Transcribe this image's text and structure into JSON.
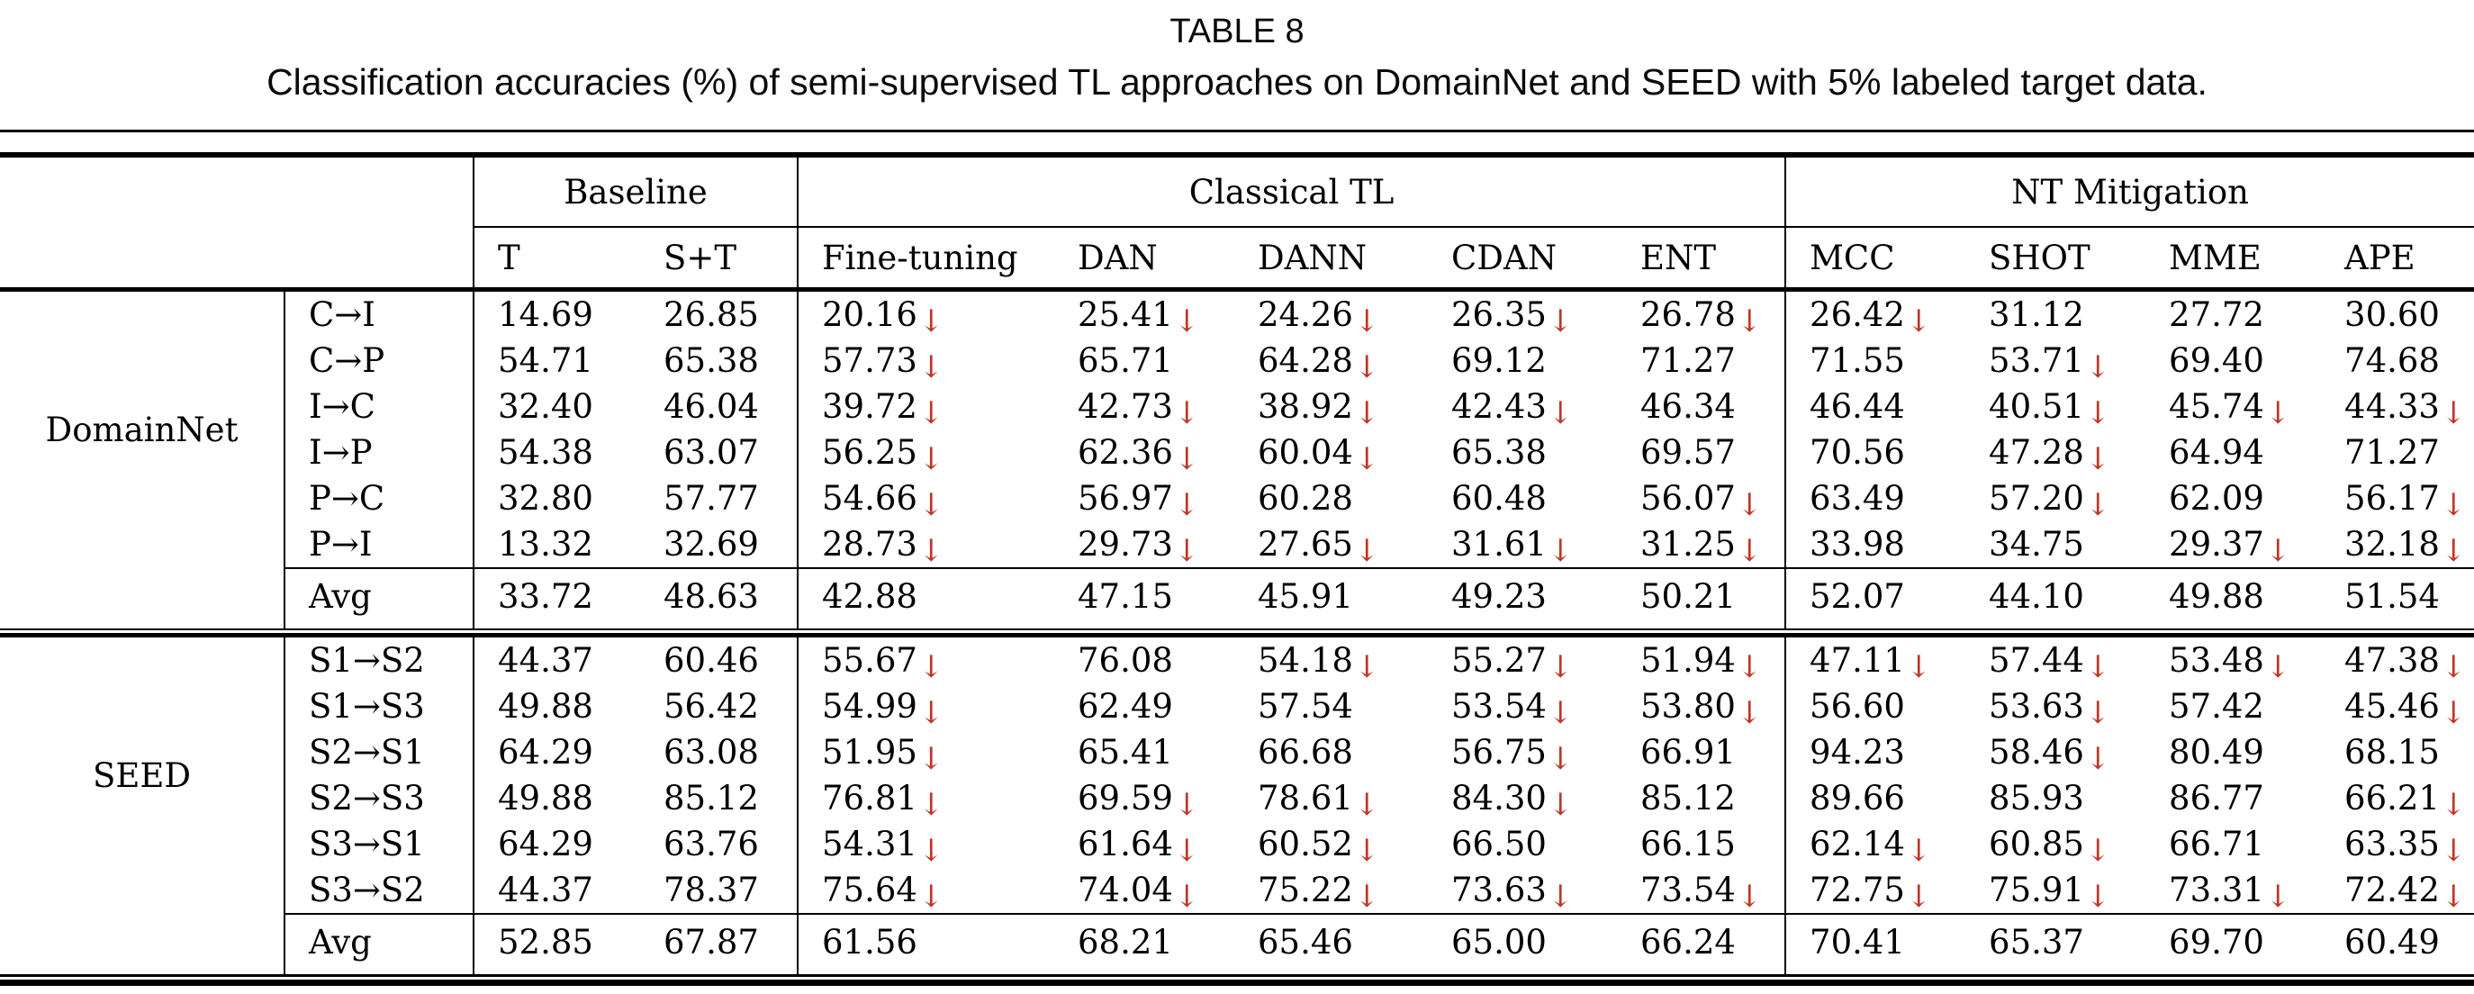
{
  "caption": {
    "title": "TABLE 8",
    "subtitle": "Classification accuracies (%) of semi-supervised TL approaches on DomainNet and SEED with 5% labeled target data."
  },
  "colors": {
    "drop_arrow": "#bf3627",
    "rule": "#000000"
  },
  "drop_arrow_glyph": "↓",
  "columns": {
    "groups": [
      {
        "label": "Baseline",
        "span": 2
      },
      {
        "label": "Classical TL",
        "span": 5
      },
      {
        "label": "NT Mitigation",
        "span": 4
      }
    ],
    "methods": [
      "T",
      "S+T",
      "Fine-tuning",
      "DAN",
      "DANN",
      "CDAN",
      "ENT",
      "MCC",
      "SHOT",
      "MME",
      "APE"
    ]
  },
  "sections": [
    {
      "dataset": "DomainNet",
      "rows": [
        {
          "pair": "C→I",
          "values": [
            "14.69",
            "26.85",
            "20.16↓",
            "25.41↓",
            "24.26↓",
            "26.35↓",
            "26.78↓",
            "26.42↓",
            "31.12",
            "27.72",
            "30.60"
          ]
        },
        {
          "pair": "C→P",
          "values": [
            "54.71",
            "65.38",
            "57.73↓",
            "65.71",
            "64.28↓",
            "69.12",
            "71.27",
            "71.55",
            "53.71↓",
            "69.40",
            "74.68"
          ]
        },
        {
          "pair": "I→C",
          "values": [
            "32.40",
            "46.04",
            "39.72↓",
            "42.73↓",
            "38.92↓",
            "42.43↓",
            "46.34",
            "46.44",
            "40.51↓",
            "45.74↓",
            "44.33↓"
          ]
        },
        {
          "pair": "I→P",
          "values": [
            "54.38",
            "63.07",
            "56.25↓",
            "62.36↓",
            "60.04↓",
            "65.38",
            "69.57",
            "70.56",
            "47.28↓",
            "64.94",
            "71.27"
          ]
        },
        {
          "pair": "P→C",
          "values": [
            "32.80",
            "57.77",
            "54.66↓",
            "56.97↓",
            "60.28",
            "60.48",
            "56.07↓",
            "63.49",
            "57.20↓",
            "62.09",
            "56.17↓"
          ]
        },
        {
          "pair": "P→I",
          "values": [
            "13.32",
            "32.69",
            "28.73↓",
            "29.73↓",
            "27.65↓",
            "31.61↓",
            "31.25↓",
            "33.98",
            "34.75",
            "29.37↓",
            "32.18↓"
          ]
        }
      ],
      "avg_label": "Avg",
      "avg_values": [
        "33.72",
        "48.63",
        "42.88",
        "47.15",
        "45.91",
        "49.23",
        "50.21",
        "52.07",
        "44.10",
        "49.88",
        "51.54"
      ]
    },
    {
      "dataset": "SEED",
      "rows": [
        {
          "pair": "S1→S2",
          "values": [
            "44.37",
            "60.46",
            "55.67↓",
            "76.08",
            "54.18↓",
            "55.27↓",
            "51.94↓",
            "47.11↓",
            "57.44↓",
            "53.48↓",
            "47.38↓"
          ]
        },
        {
          "pair": "S1→S3",
          "values": [
            "49.88",
            "56.42",
            "54.99↓",
            "62.49",
            "57.54",
            "53.54↓",
            "53.80↓",
            "56.60",
            "53.63↓",
            "57.42",
            "45.46↓"
          ]
        },
        {
          "pair": "S2→S1",
          "values": [
            "64.29",
            "63.08",
            "51.95↓",
            "65.41",
            "66.68",
            "56.75↓",
            "66.91",
            "94.23",
            "58.46↓",
            "80.49",
            "68.15"
          ]
        },
        {
          "pair": "S2→S3",
          "values": [
            "49.88",
            "85.12",
            "76.81↓",
            "69.59↓",
            "78.61↓",
            "84.30↓",
            "85.12",
            "89.66",
            "85.93",
            "86.77",
            "66.21↓"
          ]
        },
        {
          "pair": "S3→S1",
          "values": [
            "64.29",
            "63.76",
            "54.31↓",
            "61.64↓",
            "60.52↓",
            "66.50",
            "66.15",
            "62.14↓",
            "60.85↓",
            "66.71",
            "63.35↓"
          ]
        },
        {
          "pair": "S3→S2",
          "values": [
            "44.37",
            "78.37",
            "75.64↓",
            "74.04↓",
            "75.22↓",
            "73.63↓",
            "73.54↓",
            "72.75↓",
            "75.91↓",
            "73.31↓",
            "72.42↓"
          ]
        }
      ],
      "avg_label": "Avg",
      "avg_values": [
        "52.85",
        "67.87",
        "61.56",
        "68.21",
        "65.46",
        "65.00",
        "66.24",
        "70.41",
        "65.37",
        "69.70",
        "60.49"
      ]
    }
  ]
}
